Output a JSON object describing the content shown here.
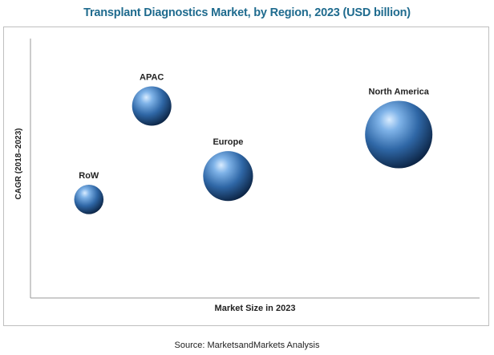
{
  "chart_data": {
    "type": "bubble",
    "title": "Transplant Diagnostics Market, by Region, 2023 (USD billion)",
    "xlabel": "Market Size in 2023",
    "ylabel": "CAGR (2018–2023)",
    "axis_ticks_shown": false,
    "grid": false,
    "legend": "none",
    "series": [
      {
        "name": "North America",
        "x": 0.82,
        "y": 0.63,
        "size": 1.0
      },
      {
        "name": "Europe",
        "x": 0.44,
        "y": 0.47,
        "size": 0.55
      },
      {
        "name": "APAC",
        "x": 0.27,
        "y": 0.74,
        "size": 0.34
      },
      {
        "name": "RoW",
        "x": 0.13,
        "y": 0.38,
        "size": 0.19
      }
    ],
    "bubble_color": "#3a78b8"
  },
  "footer": {
    "source": "Source: MarketsandMarkets Analysis"
  }
}
